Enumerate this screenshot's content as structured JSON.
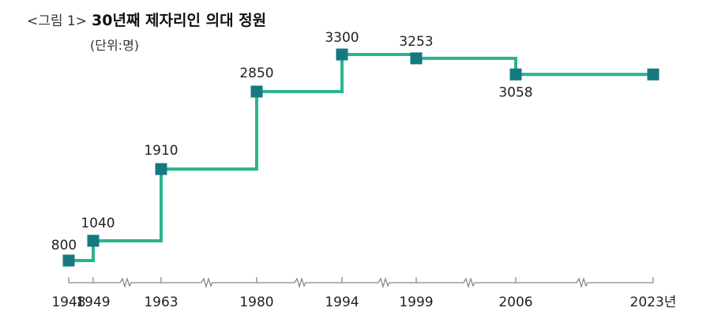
{
  "figure": {
    "prefix": "<그림 1>",
    "title": "30년째 제자리인 의대 정원",
    "unit": "(단위:명)"
  },
  "colors": {
    "line": "#2bb38f",
    "marker": "#16797f",
    "axis": "#888888",
    "text": "#222222"
  },
  "chart_data": {
    "type": "line",
    "step": "after",
    "title": "30년째 제자리인 의대 정원",
    "unit": "(단위:명)",
    "x": [
      1948,
      1949,
      1963,
      1980,
      1994,
      1999,
      2006,
      2023
    ],
    "x_tick_labels": [
      "1948",
      "1949",
      "1963",
      "1980",
      "1994",
      "1999",
      "2006",
      "2023년"
    ],
    "values": [
      800,
      1040,
      1910,
      2850,
      3300,
      3253,
      3058,
      3058
    ],
    "data_labels": [
      "800",
      "1040",
      "1910",
      "2850",
      "3300",
      "3253",
      "3058",
      ""
    ],
    "x_axis_broken": true,
    "grid": false,
    "legend": "none"
  }
}
